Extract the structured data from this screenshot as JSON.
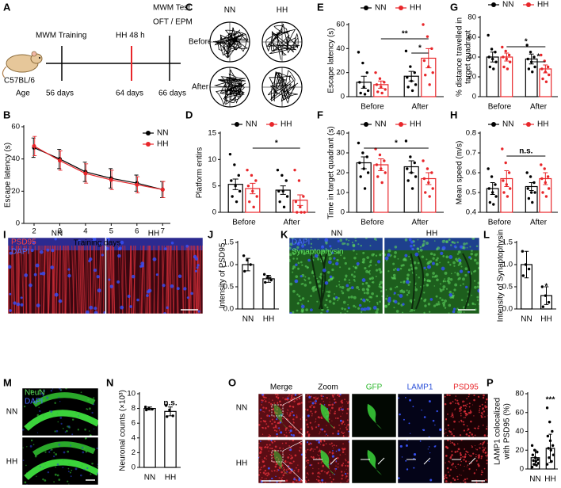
{
  "panel_letters": [
    "A",
    "B",
    "C",
    "D",
    "E",
    "F",
    "G",
    "H",
    "I",
    "J",
    "K",
    "L",
    "M",
    "N",
    "O",
    "P"
  ],
  "timeline": {
    "strain": "C57BL/6",
    "age_label": "Age",
    "events": [
      "MWM Training",
      "HH 48 h"
    ],
    "test": [
      "MWM Test",
      "OFT / EPM"
    ],
    "ages": [
      "56 days",
      "64 days",
      "66 days"
    ]
  },
  "maze_traces": {
    "columns": [
      "NN",
      "HH"
    ],
    "rows": [
      "Before",
      "After"
    ]
  },
  "micrographs": {
    "I": {
      "channels": [
        "PSD95",
        "DAPI"
      ],
      "groups": [
        "NN",
        "HH"
      ]
    },
    "K": {
      "channels": [
        "DAPI",
        "Synaptophysin"
      ],
      "groups": [
        "NN",
        "HH"
      ]
    },
    "M": {
      "channels": [
        "NeuN",
        "DAPI"
      ],
      "groups": [
        "NN",
        "HH"
      ]
    },
    "O": {
      "columns": [
        "Merge",
        "Zoom",
        "GFP",
        "LAMP1",
        "PSD95"
      ],
      "rows": [
        "NN",
        "HH"
      ]
    }
  },
  "chart_data": [
    {
      "type": "line",
      "xlabel": "Training days",
      "ylabel": "Escape latency (s)",
      "x": [
        2,
        3,
        4,
        5,
        6,
        7
      ],
      "xlim": [
        1.6,
        7.3
      ],
      "xticks": [
        2,
        3,
        4,
        5,
        6,
        7
      ],
      "ylim": [
        0,
        60
      ],
      "yticks": [
        0,
        20,
        40,
        60
      ],
      "series": [
        {
          "name": "NN",
          "color": "#000000",
          "values": [
            47,
            40,
            32,
            28,
            25,
            21
          ],
          "errors": [
            6,
            6,
            6,
            6,
            5,
            5
          ]
        },
        {
          "name": "HH",
          "color": "#e8262a",
          "values": [
            48,
            39,
            31,
            27,
            24,
            21
          ],
          "errors": [
            6,
            6,
            6,
            6,
            5,
            5
          ]
        }
      ]
    },
    {
      "type": "bar",
      "ylabel": "Platform entirs",
      "categories": [
        "Before",
        "After"
      ],
      "ylim": [
        0,
        15
      ],
      "yticks": [
        0,
        5,
        10,
        15
      ],
      "annotations": [
        {
          "text": "*"
        }
      ],
      "series": [
        {
          "name": "NN",
          "color": "#000000",
          "values": [
            5.3,
            4.2
          ],
          "errors": [
            1.0,
            0.8
          ],
          "points": [
            [
              11,
              9,
              7,
              6,
              5,
              4,
              3,
              2
            ],
            [
              8,
              7,
              6,
              4,
              4,
              3,
              2,
              1
            ]
          ]
        },
        {
          "name": "HH",
          "color": "#e8262a",
          "values": [
            4.5,
            2.3
          ],
          "errors": [
            1.0,
            1.0
          ],
          "points": [
            [
              8,
              7,
              6,
              5,
              4,
              3,
              2,
              1
            ],
            [
              8,
              6,
              3,
              2,
              1,
              0,
              0,
              0
            ]
          ]
        }
      ]
    },
    {
      "type": "bar",
      "ylabel": "Escape latency (s)",
      "categories": [
        "Before",
        "After"
      ],
      "ylim": [
        0,
        60
      ],
      "yticks": [
        0,
        20,
        40,
        60
      ],
      "annotations": [
        {
          "text": "**"
        },
        {
          "text": "*"
        }
      ],
      "series": [
        {
          "name": "NN",
          "color": "#000000",
          "values": [
            12,
            17
          ],
          "errors": [
            5,
            4
          ],
          "points": [
            [
              37,
              28,
              20,
              12,
              8,
              5,
              3,
              2
            ],
            [
              38,
              25,
              20,
              16,
              13,
              10,
              8,
              5
            ]
          ]
        },
        {
          "name": "HH",
          "color": "#e8262a",
          "values": [
            10,
            32
          ],
          "errors": [
            3,
            8
          ],
          "points": [
            [
              20,
              15,
              12,
              10,
              8,
              6,
              4,
              3
            ],
            [
              60,
              50,
              40,
              30,
              25,
              20,
              18,
              10
            ]
          ]
        }
      ]
    },
    {
      "type": "bar",
      "ylabel": "Time in target quadrant (s)",
      "categories": [
        "Before",
        "After"
      ],
      "ylim": [
        0,
        40
      ],
      "yticks": [
        0,
        10,
        20,
        30,
        40
      ],
      "annotations": [
        {
          "text": "*"
        }
      ],
      "series": [
        {
          "name": "NN",
          "color": "#000000",
          "values": [
            25,
            23
          ],
          "errors": [
            3,
            3
          ],
          "points": [
            [
              35,
              30,
              28,
              25,
              22,
              20,
              18,
              12
            ],
            [
              36,
              28,
              25,
              22,
              20,
              18,
              16,
              12
            ]
          ]
        },
        {
          "name": "HH",
          "color": "#e8262a",
          "values": [
            24,
            17
          ],
          "errors": [
            3,
            3
          ],
          "points": [
            [
              32,
              29,
              26,
              24,
              22,
              20,
              18,
              15
            ],
            [
              26,
              22,
              20,
              17,
              15,
              12,
              10,
              8
            ]
          ]
        }
      ]
    },
    {
      "type": "bar",
      "ylabel": [
        "% distance travelled in",
        "target quadrant"
      ],
      "categories": [
        "Before",
        "After"
      ],
      "ylim": [
        0,
        80
      ],
      "yticks": [
        0,
        20,
        40,
        60,
        80
      ],
      "annotations": [
        {
          "text": "*"
        },
        {
          "text": "*"
        }
      ],
      "series": [
        {
          "name": "NN",
          "color": "#000000",
          "values": [
            40,
            38
          ],
          "errors": [
            5,
            5
          ],
          "points": [
            [
              62,
              48,
              45,
              40,
              38,
              35,
              30,
              28
            ],
            [
              52,
              45,
              40,
              38,
              35,
              30,
              28,
              25
            ]
          ]
        },
        {
          "name": "HH",
          "color": "#e8262a",
          "values": [
            40,
            28
          ],
          "errors": [
            4,
            4
          ],
          "points": [
            [
              50,
              46,
              42,
              40,
              38,
              35,
              30,
              28
            ],
            [
              42,
              36,
              30,
              28,
              25,
              22,
              18,
              15
            ]
          ]
        }
      ]
    },
    {
      "type": "bar",
      "ylabel": "Mean speed (m/s)",
      "categories": [
        "Before",
        "After"
      ],
      "ylim": [
        0.4,
        0.8
      ],
      "yticks": [
        0.4,
        0.5,
        0.6,
        0.7,
        0.8
      ],
      "annotations": [
        {
          "text": "n.s."
        }
      ],
      "series": [
        {
          "name": "NN",
          "color": "#000000",
          "values": [
            0.52,
            0.53
          ],
          "errors": [
            0.03,
            0.02
          ],
          "points": [
            [
              0.62,
              0.58,
              0.54,
              0.52,
              0.5,
              0.48,
              0.45,
              0.44
            ],
            [
              0.6,
              0.58,
              0.55,
              0.52,
              0.5,
              0.5,
              0.47,
              0.45
            ]
          ]
        },
        {
          "name": "HH",
          "color": "#e8262a",
          "values": [
            0.57,
            0.57
          ],
          "errors": [
            0.04,
            0.03
          ],
          "points": [
            [
              0.72,
              0.65,
              0.6,
              0.56,
              0.54,
              0.52,
              0.5,
              0.48
            ],
            [
              0.64,
              0.62,
              0.58,
              0.57,
              0.55,
              0.52,
              0.5,
              0.48
            ]
          ]
        }
      ]
    },
    {
      "type": "bar",
      "ylabel": "Intensity of PSD95",
      "categories": [
        "NN",
        "HH"
      ],
      "color": "#000000",
      "ylim": [
        0,
        1.5
      ],
      "yticks": [
        {
          "value": 0,
          "label": "0.0"
        },
        0.5,
        {
          "value": 1,
          "label": "1.0"
        },
        1.5
      ],
      "annotations": [
        {
          "text": "**"
        }
      ],
      "values": [
        1.0,
        0.68
      ],
      "errors": [
        0.14,
        0.08
      ],
      "points": [
        [
          1.2,
          1.1,
          1.0,
          0.85
        ],
        [
          0.78,
          0.72,
          0.65,
          0.6
        ]
      ]
    },
    {
      "type": "bar",
      "ylabel": "Intensity of Synaptophysin",
      "categories": [
        "NN",
        "HH"
      ],
      "color": "#000000",
      "ylim": [
        0,
        1.5
      ],
      "yticks": [
        {
          "value": 0,
          "label": "0.0"
        },
        0.5,
        {
          "value": 1,
          "label": "1.0"
        },
        1.5
      ],
      "annotations": [
        {
          "text": "*"
        }
      ],
      "values": [
        1.0,
        0.3
      ],
      "errors": [
        0.3,
        0.2
      ],
      "points": [
        [
          1.3,
          1.0,
          0.9,
          0.75
        ],
        [
          0.5,
          0.3,
          0.15,
          0.05
        ]
      ]
    },
    {
      "type": "bar",
      "ylabel": "Neuronal counts (×10³)",
      "categories": [
        "NN",
        "HH"
      ],
      "color": "#000000",
      "ylim": [
        0,
        10
      ],
      "yticks": [
        0,
        2,
        4,
        6,
        8,
        10
      ],
      "annotations": [
        {
          "text": "n.s."
        }
      ],
      "values": [
        8.0,
        7.6
      ],
      "errors": [
        0.2,
        0.6
      ],
      "points": [
        [
          8.2,
          8.0,
          7.9,
          7.8
        ],
        [
          8.4,
          7.8,
          7.0,
          6.9
        ]
      ]
    },
    {
      "type": "bar",
      "ylabel": [
        "LAMP1 colocalized",
        "with PSD95 (%)"
      ],
      "categories": [
        "NN",
        "HH"
      ],
      "color": "#000000",
      "ylim": [
        0,
        80
      ],
      "yticks": [
        0,
        20,
        40,
        60,
        80
      ],
      "annotations": [
        {
          "text": "***"
        }
      ],
      "values": [
        12,
        22
      ],
      "errors": [
        8,
        15
      ],
      "points": [
        [
          25,
          20,
          18,
          15,
          12,
          10,
          9,
          8,
          6,
          5,
          4,
          2
        ],
        [
          65,
          50,
          40,
          35,
          30,
          25,
          22,
          20,
          15,
          12,
          8,
          5
        ]
      ]
    }
  ]
}
